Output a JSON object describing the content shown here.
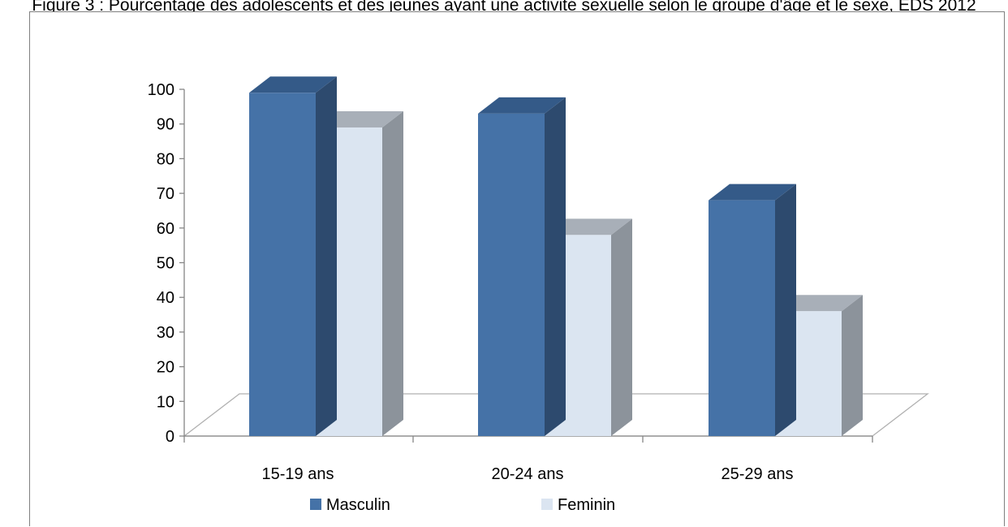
{
  "caption": "Figure 3 : Pourcentage des adolescents et des jeunes ayant une activité sexuelle selon le groupe d'âge et le sexe, EDS 2012",
  "chart_data": {
    "type": "bar",
    "style": "3d-clustered-column",
    "title": "",
    "xlabel": "",
    "ylabel": "",
    "categories": [
      "15-19 ans",
      "20-24 ans",
      "25-29 ans"
    ],
    "series": [
      {
        "name": "Masculin",
        "values": [
          99,
          93,
          68
        ],
        "color": "#4572a7",
        "side_color": "#2d4a6e",
        "top_color": "#345a88"
      },
      {
        "name": "Feminin",
        "values": [
          89,
          58,
          36
        ],
        "color": "#dbe5f1",
        "side_color": "#8c939b",
        "top_color": "#a8afb8"
      }
    ],
    "ylim": [
      0,
      100
    ],
    "yticks": [
      "0",
      "10",
      "20",
      "30",
      "40",
      "50",
      "60",
      "70",
      "80",
      "90",
      "100"
    ],
    "grid": false,
    "legend": "bottom",
    "floor_color": "#ffffff",
    "axis_color": "#868686"
  }
}
